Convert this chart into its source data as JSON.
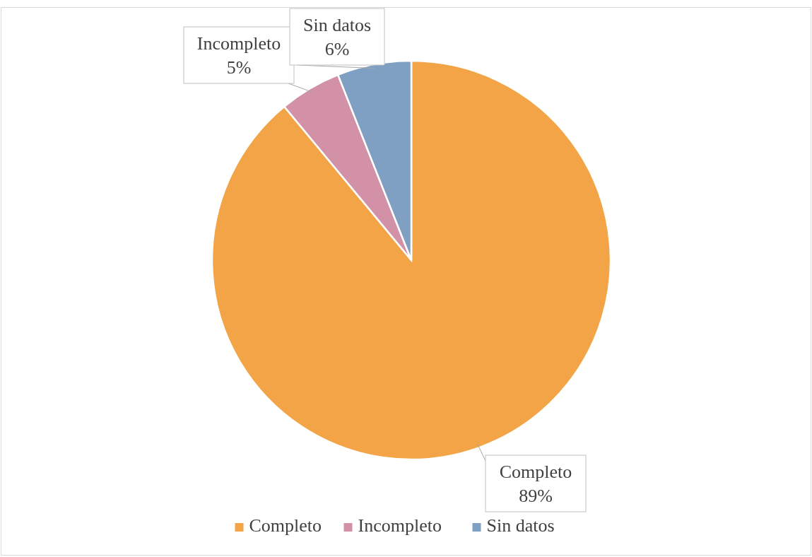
{
  "chart_data": {
    "type": "pie",
    "categories": [
      "Completo",
      "Incompleto",
      "Sin datos"
    ],
    "values": [
      89,
      5,
      6
    ],
    "colors": [
      "#f2a446",
      "#d291a6",
      "#7f9fc3"
    ],
    "value_labels": [
      "89%",
      "5%",
      "6%"
    ],
    "legend": "bottom"
  }
}
